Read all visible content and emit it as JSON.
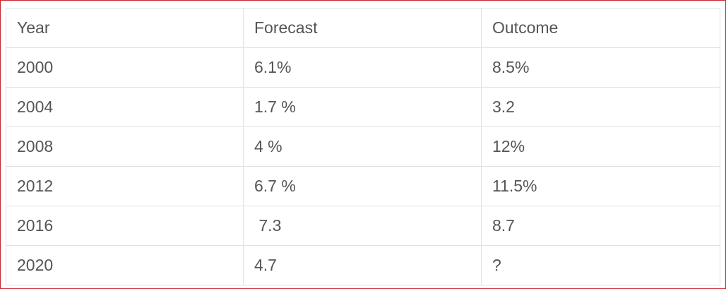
{
  "table": {
    "header": [
      "Year",
      "Forecast",
      "Outcome"
    ],
    "rows": [
      [
        "2000",
        "6.1%",
        "8.5%"
      ],
      [
        "2004",
        "1.7 %",
        "3.2"
      ],
      [
        "2008",
        "4 %",
        "12%"
      ],
      [
        "2012",
        "6.7 %",
        "11.5%"
      ],
      [
        "2016",
        " 7.3",
        "8.7"
      ],
      [
        "2020",
        "4.7",
        "?"
      ]
    ]
  }
}
